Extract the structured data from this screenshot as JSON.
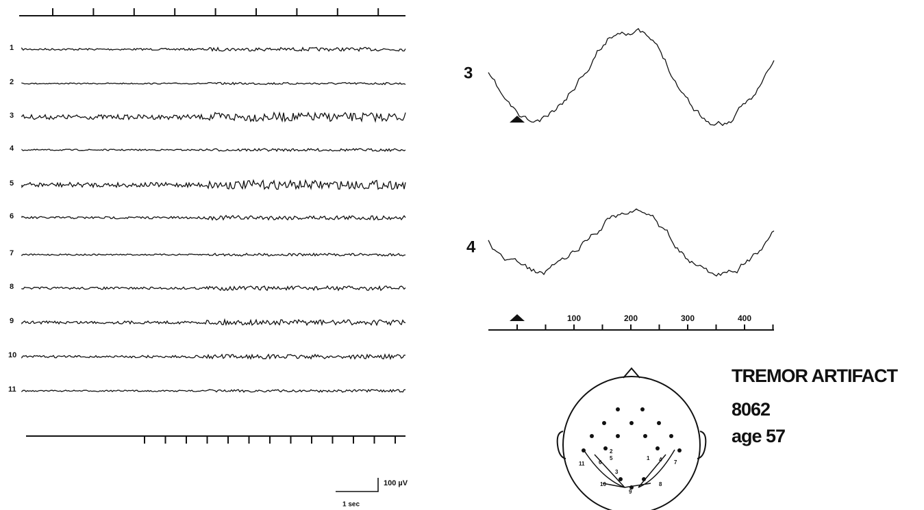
{
  "left_panel": {
    "channels": [
      "1",
      "2",
      "3",
      "4",
      "5",
      "6",
      "7",
      "8",
      "9",
      "10",
      "11"
    ]
  },
  "scale_bar": {
    "amplitude": "100 µV",
    "time": "1 sec"
  },
  "detail": {
    "traces": [
      "3",
      "4"
    ],
    "axis_labels": [
      "100",
      "200",
      "300",
      "400"
    ]
  },
  "head_map": {
    "electrode_labels": [
      "11",
      "6",
      "5",
      "3",
      "2",
      "10",
      "9",
      "8",
      "1",
      "4",
      "7"
    ]
  },
  "caption": {
    "title": "TREMOR ARTIFACT",
    "id": "8062",
    "age": "age 57"
  }
}
